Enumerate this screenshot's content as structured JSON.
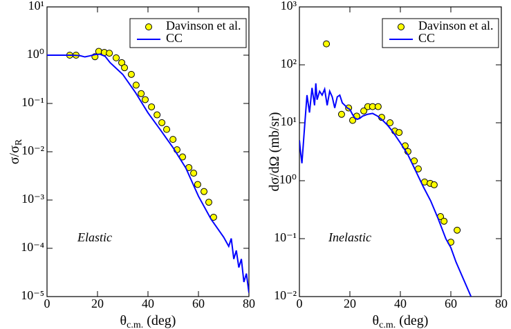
{
  "chart_data": [
    {
      "type": "scatter",
      "ylog": true,
      "ylabel": [
        "σ/σ",
        "R"
      ],
      "xlabel": [
        "θ",
        "c.m.",
        " (deg)"
      ],
      "annotation": "Elastic",
      "xlim": [
        0,
        80
      ],
      "xticks": [
        0,
        20,
        40,
        60,
        80
      ],
      "ylim": [
        1e-05,
        10
      ],
      "yticks": [
        {
          "value": 10,
          "label": "10¹"
        },
        {
          "value": 1,
          "label": "10⁰"
        },
        {
          "value": 0.1,
          "label": "10⁻¹"
        },
        {
          "value": 0.01,
          "label": "10⁻²"
        },
        {
          "value": 0.001,
          "label": "10⁻³"
        },
        {
          "value": 0.0001,
          "label": "10⁻⁴"
        },
        {
          "value": 1e-05,
          "label": "10⁻⁵"
        }
      ],
      "series": [
        {
          "name": "Davinson et al.",
          "color": "#ffff00",
          "style": "marker",
          "x": [
            9,
            11.5,
            19,
            20.5,
            22.7,
            24.7,
            27.4,
            29.6,
            30.7,
            33.4,
            35.3,
            37.3,
            38.9,
            41.4,
            43.6,
            45.5,
            47.4,
            49.9,
            51.5,
            53.7,
            56.2,
            58.1,
            59.7,
            62.2,
            64.1,
            66
          ],
          "values": [
            1.0,
            1.0,
            0.93,
            1.2,
            1.14,
            1.1,
            0.88,
            0.7,
            0.55,
            0.4,
            0.24,
            0.16,
            0.12,
            0.085,
            0.058,
            0.04,
            0.029,
            0.018,
            0.011,
            0.0078,
            0.0047,
            0.0036,
            0.0021,
            0.0015,
            0.0009,
            0.00044
          ]
        },
        {
          "name": "CC",
          "color": "#0000ff",
          "style": "line",
          "x": [
            0,
            5,
            10,
            13,
            15,
            17,
            19,
            21,
            23,
            25,
            30,
            35,
            40,
            45,
            50,
            55,
            60,
            65,
            70,
            72,
            73,
            74,
            75,
            76,
            77,
            78,
            79,
            80
          ],
          "values": [
            1.0,
            1.0,
            1.0,
            0.98,
            0.92,
            0.97,
            1.03,
            1.05,
            0.95,
            0.7,
            0.4,
            0.17,
            0.064,
            0.028,
            0.012,
            0.0046,
            0.0012,
            0.0004,
            0.00017,
            0.00011,
            0.00016,
            6e-05,
            9e-05,
            4e-05,
            6e-05,
            2e-05,
            3e-05,
            1.2e-05
          ]
        }
      ]
    },
    {
      "type": "scatter",
      "ylog": true,
      "ylabel": [
        "dσ/dΩ (mb/sr)"
      ],
      "xlabel": [
        "θ",
        "c.m.",
        " (deg)"
      ],
      "annotation": "Inelastic",
      "xlim": [
        0,
        80
      ],
      "xticks": [
        0,
        20,
        40,
        60,
        80
      ],
      "ylim": [
        0.01,
        1000
      ],
      "yticks": [
        {
          "value": 1000,
          "label": "10³"
        },
        {
          "value": 100,
          "label": "10²"
        },
        {
          "value": 10,
          "label": "10¹"
        },
        {
          "value": 1,
          "label": "10⁰"
        },
        {
          "value": 0.1,
          "label": "10⁻¹"
        },
        {
          "value": 0.01,
          "label": "10⁻²"
        }
      ],
      "series": [
        {
          "name": "Davinson et al.",
          "color": "#ffff00",
          "style": "marker",
          "x": [
            10.7,
            16.7,
            19.5,
            21.1,
            22.7,
            25.5,
            27.1,
            29,
            31.2,
            32.6,
            35.9,
            37.8,
            39.5,
            41.9,
            43,
            45.5,
            47.1,
            49.6,
            51.8,
            53.4,
            55.9,
            57.3,
            60,
            62.5
          ],
          "values": [
            230,
            14,
            18,
            11,
            13,
            16,
            19,
            19,
            19,
            12.4,
            10,
            7.2,
            6.8,
            4,
            3.2,
            2.2,
            1.6,
            0.95,
            0.9,
            0.85,
            0.24,
            0.2,
            0.087,
            0.14
          ]
        },
        {
          "name": "CC",
          "color": "#0000ff",
          "style": "line",
          "x": [
            0,
            0.5,
            1,
            2,
            3,
            4,
            5,
            6,
            6.5,
            7,
            8,
            9,
            10,
            11,
            12,
            13,
            14,
            15,
            16,
            17,
            18,
            19,
            20,
            21,
            22,
            23,
            24,
            25,
            27,
            29,
            31,
            33,
            35,
            37,
            40,
            43,
            46,
            49,
            52,
            55,
            58,
            60,
            62,
            65,
            68
          ],
          "values": [
            5,
            3,
            2,
            8,
            30,
            15,
            40,
            20,
            48,
            25,
            35,
            30,
            38,
            20,
            35,
            28,
            18,
            28,
            30,
            22,
            20,
            18,
            17,
            14,
            12,
            11.5,
            12,
            13,
            14,
            14.5,
            13,
            11,
            9,
            7,
            4.5,
            2.8,
            1.5,
            0.8,
            0.45,
            0.22,
            0.1,
            0.07,
            0.04,
            0.02,
            0.01
          ]
        }
      ]
    }
  ]
}
